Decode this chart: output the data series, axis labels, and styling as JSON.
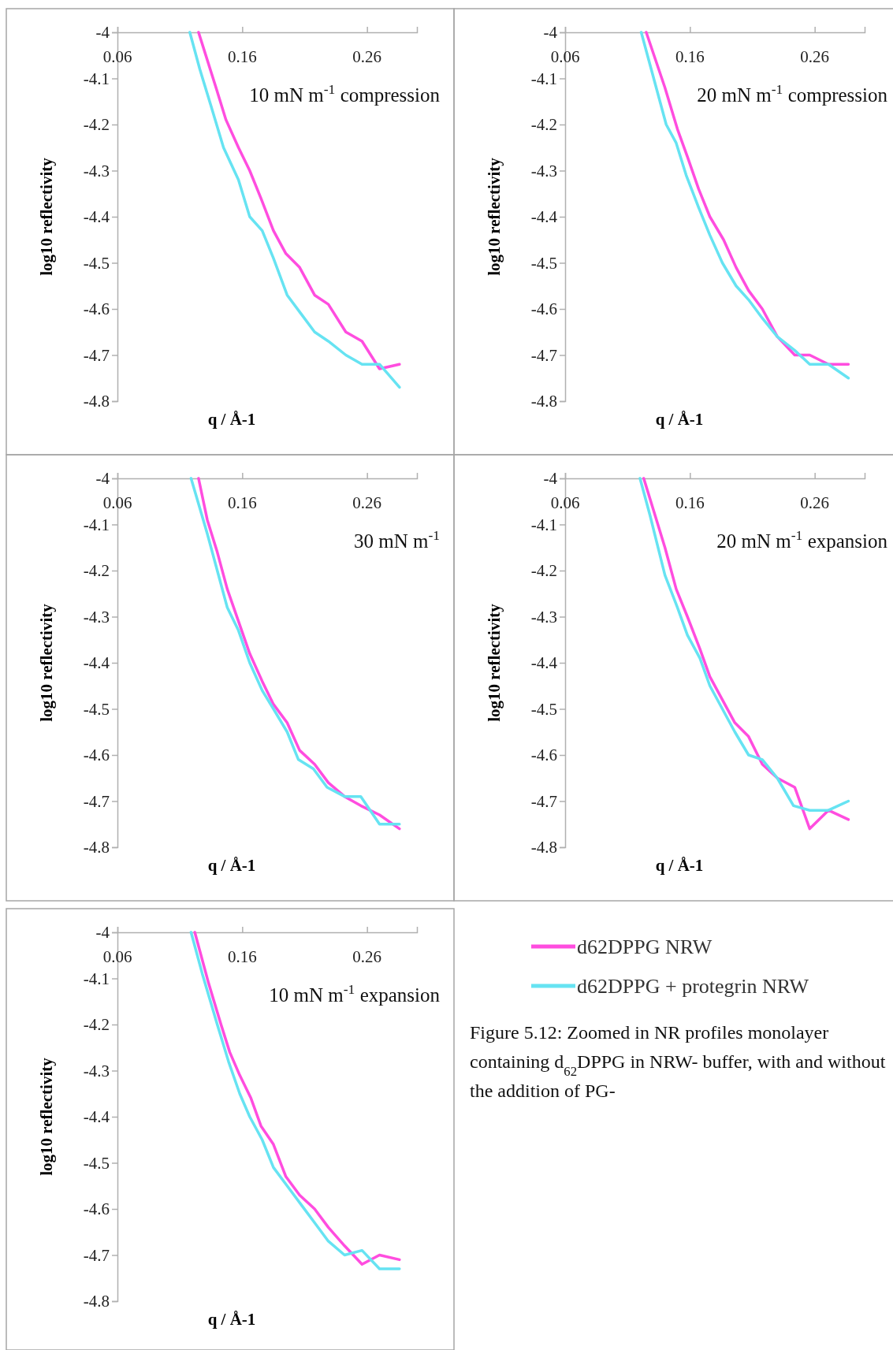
{
  "chart_data": [
    {
      "type": "line",
      "title": "10 mN m$^{-1}$ compression",
      "xlabel": "q / Å-1",
      "ylabel": "log10 reflectivity",
      "xlim": [
        0.06,
        0.3
      ],
      "ylim": [
        -4.8,
        -4
      ],
      "xticks": [
        0.06,
        0.16,
        0.26
      ],
      "yticks": [
        -4,
        -4.1,
        -4.2,
        -4.3,
        -4.4,
        -4.5,
        -4.6,
        -4.7,
        -4.8
      ],
      "series": [
        {
          "color": "#ff4ddf",
          "x": [
            0.125,
            0.139,
            0.147,
            0.157,
            0.166,
            0.175,
            0.185,
            0.195,
            0.206,
            0.218,
            0.229,
            0.243,
            0.256,
            0.27,
            0.286
          ],
          "values": [
            -4,
            -4.12,
            -4.19,
            -4.25,
            -4.3,
            -4.36,
            -4.43,
            -4.48,
            -4.51,
            -4.57,
            -4.59,
            -4.65,
            -4.67,
            -4.73,
            -4.72
          ]
        },
        {
          "color": "#66e3f2",
          "x": [
            0.118,
            0.126,
            0.135,
            0.145,
            0.157,
            0.166,
            0.176,
            0.185,
            0.196,
            0.207,
            0.218,
            0.229,
            0.243,
            0.256,
            0.27,
            0.286
          ],
          "values": [
            -4,
            -4.08,
            -4.16,
            -4.25,
            -4.32,
            -4.4,
            -4.43,
            -4.49,
            -4.57,
            -4.61,
            -4.65,
            -4.67,
            -4.7,
            -4.72,
            -4.72,
            -4.77
          ]
        }
      ]
    },
    {
      "type": "line",
      "title": "20 mN m$^{-1}$ compression",
      "xlabel": "q / Å-1",
      "ylabel": "log10 reflectivity",
      "xlim": [
        0.06,
        0.3
      ],
      "ylim": [
        -4.8,
        -4
      ],
      "xticks": [
        0.06,
        0.16,
        0.26
      ],
      "yticks": [
        -4,
        -4.1,
        -4.2,
        -4.3,
        -4.4,
        -4.5,
        -4.6,
        -4.7,
        -4.8
      ],
      "series": [
        {
          "color": "#ff4ddf",
          "x": [
            0.125,
            0.14,
            0.15,
            0.158,
            0.167,
            0.176,
            0.187,
            0.197,
            0.207,
            0.218,
            0.23,
            0.244,
            0.256,
            0.271,
            0.287
          ],
          "values": [
            -4,
            -4.12,
            -4.21,
            -4.27,
            -4.34,
            -4.4,
            -4.45,
            -4.51,
            -4.56,
            -4.6,
            -4.66,
            -4.7,
            -4.7,
            -4.72,
            -4.72
          ]
        },
        {
          "color": "#66e3f2",
          "x": [
            0.121,
            0.128,
            0.141,
            0.149,
            0.157,
            0.167,
            0.176,
            0.186,
            0.197,
            0.207,
            0.218,
            0.23,
            0.244,
            0.256,
            0.271,
            0.287
          ],
          "values": [
            -4,
            -4.07,
            -4.2,
            -4.24,
            -4.31,
            -4.38,
            -4.44,
            -4.5,
            -4.55,
            -4.58,
            -4.62,
            -4.66,
            -4.69,
            -4.72,
            -4.72,
            -4.75
          ]
        }
      ]
    },
    {
      "type": "line",
      "title": "30 mN m$^{-1}$",
      "xlabel": "q / Å-1",
      "ylabel": "log10 reflectivity",
      "xlim": [
        0.06,
        0.3
      ],
      "ylim": [
        -4.8,
        -4
      ],
      "xticks": [
        0.06,
        0.16,
        0.26
      ],
      "yticks": [
        -4,
        -4.1,
        -4.2,
        -4.3,
        -4.4,
        -4.5,
        -4.6,
        -4.7,
        -4.8
      ],
      "series": [
        {
          "color": "#ff4ddf",
          "x": [
            0.125,
            0.132,
            0.14,
            0.148,
            0.157,
            0.166,
            0.176,
            0.185,
            0.196,
            0.206,
            0.218,
            0.229,
            0.242,
            0.255,
            0.27,
            0.286
          ],
          "values": [
            -4,
            -4.09,
            -4.16,
            -4.24,
            -4.31,
            -4.38,
            -4.44,
            -4.49,
            -4.53,
            -4.59,
            -4.62,
            -4.66,
            -4.69,
            -4.71,
            -4.73,
            -4.76
          ]
        },
        {
          "color": "#66e3f2",
          "x": [
            0.119,
            0.132,
            0.14,
            0.148,
            0.157,
            0.166,
            0.176,
            0.185,
            0.196,
            0.205,
            0.217,
            0.228,
            0.242,
            0.255,
            0.27,
            0.286
          ],
          "values": [
            -4,
            -4.12,
            -4.2,
            -4.28,
            -4.33,
            -4.4,
            -4.46,
            -4.5,
            -4.55,
            -4.61,
            -4.63,
            -4.67,
            -4.69,
            -4.69,
            -4.75,
            -4.75
          ]
        }
      ]
    },
    {
      "type": "line",
      "title": "20 mN m$^{-1}$ expansion",
      "xlabel": "q / Å-1",
      "ylabel": "log10 reflectivity",
      "xlim": [
        0.06,
        0.3
      ],
      "ylim": [
        -4.8,
        -4
      ],
      "xticks": [
        0.06,
        0.16,
        0.26
      ],
      "yticks": [
        -4,
        -4.1,
        -4.2,
        -4.3,
        -4.4,
        -4.5,
        -4.6,
        -4.7,
        -4.8
      ],
      "series": [
        {
          "color": "#ff4ddf",
          "x": [
            0.123,
            0.14,
            0.149,
            0.158,
            0.168,
            0.176,
            0.186,
            0.196,
            0.207,
            0.218,
            0.23,
            0.244,
            0.256,
            0.271,
            0.287
          ],
          "values": [
            -4,
            -4.15,
            -4.24,
            -4.3,
            -4.37,
            -4.43,
            -4.48,
            -4.53,
            -4.56,
            -4.62,
            -4.65,
            -4.67,
            -4.76,
            -4.72,
            -4.74
          ]
        },
        {
          "color": "#66e3f2",
          "x": [
            0.12,
            0.128,
            0.14,
            0.15,
            0.158,
            0.168,
            0.176,
            0.186,
            0.196,
            0.207,
            0.218,
            0.23,
            0.243,
            0.256,
            0.271,
            0.287
          ],
          "values": [
            -4,
            -4.08,
            -4.21,
            -4.28,
            -4.34,
            -4.39,
            -4.45,
            -4.5,
            -4.55,
            -4.6,
            -4.61,
            -4.65,
            -4.71,
            -4.72,
            -4.72,
            -4.7
          ]
        }
      ]
    },
    {
      "type": "line",
      "title": "10 mN m$^{-1}$ expansion",
      "xlabel": "q / Å-1",
      "ylabel": "log10 reflectivity",
      "xlim": [
        0.06,
        0.3
      ],
      "ylim": [
        -4.8,
        -4
      ],
      "xticks": [
        0.06,
        0.16,
        0.26
      ],
      "yticks": [
        -4,
        -4.1,
        -4.2,
        -4.3,
        -4.4,
        -4.5,
        -4.6,
        -4.7,
        -4.8
      ],
      "legend": "right",
      "annotations": [
        "Figure 5.12: Zoomed in NR profiles monolayer containing d$_{62}$DPPG in NRW- buffer, with and without the addition of PG-"
      ],
      "series": [
        {
          "name": "d62DPPG NRW",
          "color": "#ff4ddf",
          "x": [
            0.122,
            0.133,
            0.143,
            0.15,
            0.158,
            0.167,
            0.175,
            0.185,
            0.195,
            0.206,
            0.218,
            0.229,
            0.242,
            0.256,
            0.27,
            0.286
          ],
          "values": [
            -4,
            -4.11,
            -4.2,
            -4.26,
            -4.31,
            -4.36,
            -4.42,
            -4.46,
            -4.53,
            -4.57,
            -4.6,
            -4.64,
            -4.68,
            -4.72,
            -4.7,
            -4.71
          ]
        },
        {
          "name": "d62DPPG + protegrin NRW",
          "color": "#66e3f2",
          "x": [
            0.119,
            0.128,
            0.14,
            0.149,
            0.158,
            0.166,
            0.176,
            0.185,
            0.196,
            0.207,
            0.218,
            0.229,
            0.242,
            0.256,
            0.27,
            0.286
          ],
          "values": [
            -4,
            -4.09,
            -4.2,
            -4.28,
            -4.35,
            -4.4,
            -4.45,
            -4.51,
            -4.55,
            -4.59,
            -4.63,
            -4.67,
            -4.7,
            -4.69,
            -4.73,
            -4.73
          ]
        }
      ]
    }
  ]
}
